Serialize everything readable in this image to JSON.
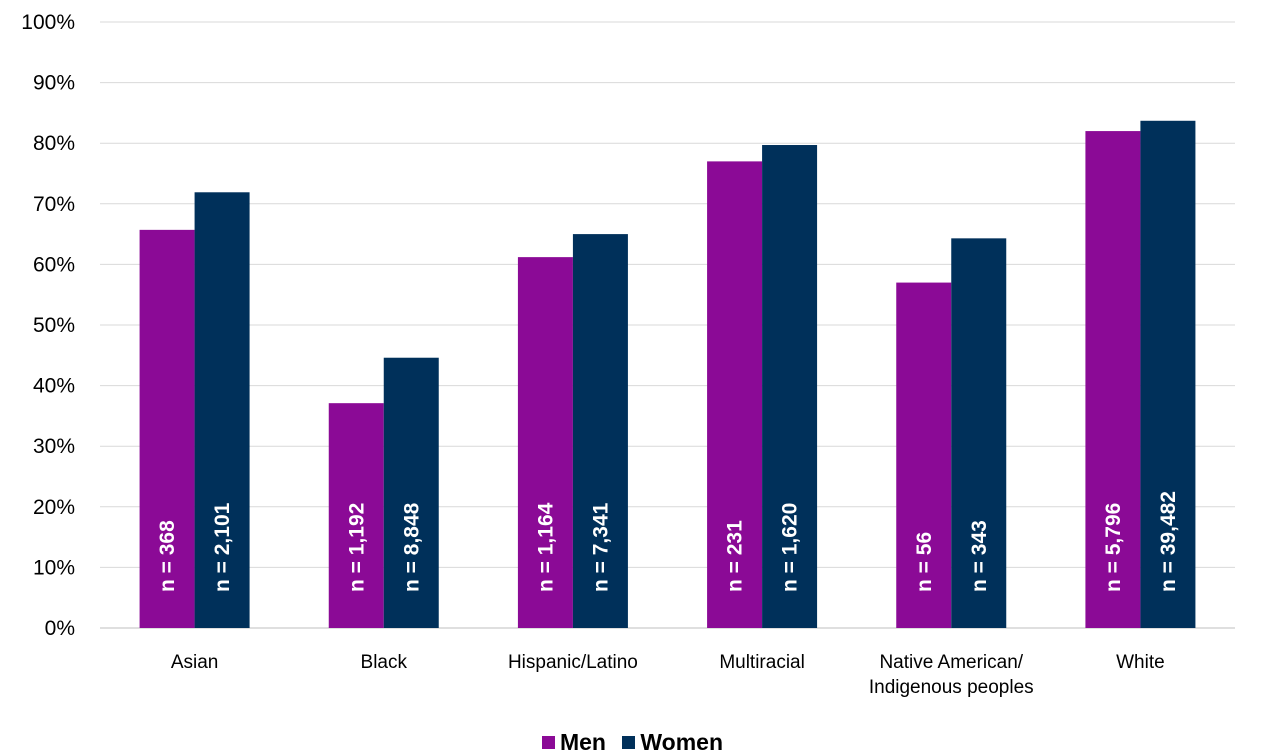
{
  "chart_data": {
    "type": "bar",
    "categories": [
      [
        "Asian"
      ],
      [
        "Black"
      ],
      [
        "Hispanic/Latino"
      ],
      [
        "Multiracial"
      ],
      [
        "Native American/",
        "Indigenous peoples"
      ],
      [
        "White"
      ]
    ],
    "series": [
      {
        "name": "Men",
        "color": "#8B0A96",
        "values": [
          65.7,
          37.1,
          61.2,
          77.0,
          57.0,
          82.0
        ],
        "labels": [
          "n = 368",
          "n = 1,192",
          "n = 1,164",
          "n = 231",
          "n = 56",
          "n = 5,796"
        ]
      },
      {
        "name": "Women",
        "color": "#00305A",
        "values": [
          71.9,
          44.6,
          65.0,
          79.7,
          64.3,
          83.7
        ],
        "labels": [
          "n = 2,101",
          "n = 8,848",
          "n = 7,341",
          "n = 1,620",
          "n = 343",
          "n = 39,482"
        ]
      }
    ],
    "y_ticks": [
      "0%",
      "10%",
      "20%",
      "30%",
      "40%",
      "50%",
      "60%",
      "70%",
      "80%",
      "90%",
      "100%"
    ],
    "ylim": [
      0,
      100
    ],
    "grid": true,
    "legend_position": "bottom"
  }
}
